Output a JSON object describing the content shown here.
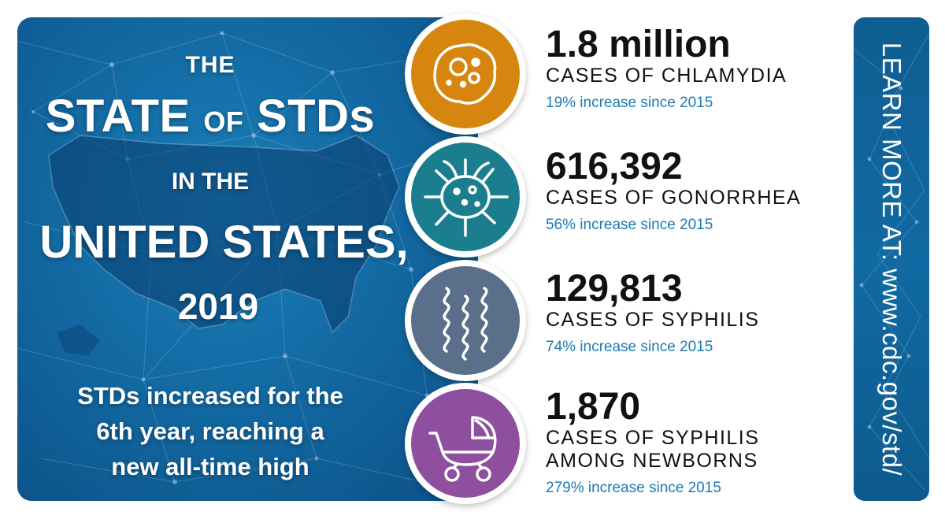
{
  "title": {
    "line1": "THE",
    "line2_a": "STATE",
    "line2_of": "OF",
    "line2_b": "STDs",
    "line3": "IN THE",
    "line4": "UNITED STATES,",
    "line5": "2019"
  },
  "subtitle": {
    "line1": "STDs increased for the",
    "line2": "6th year, reaching a",
    "line3": "new all-time high"
  },
  "stats": [
    {
      "number": "1.8 million",
      "label1": "CASES OF CHLAMYDIA",
      "label2": "",
      "increase": "19% increase since 2015",
      "icon": "bacteria-cell-icon",
      "color": "#d6860f"
    },
    {
      "number": "616,392",
      "label1": "CASES OF GONORRHEA",
      "label2": "",
      "increase": "56% increase since 2015",
      "icon": "microbe-icon",
      "color": "#1a7e8f"
    },
    {
      "number": "129,813",
      "label1": "CASES OF SYPHILIS",
      "label2": "",
      "increase": "74% increase since 2015",
      "icon": "spirochete-icon",
      "color": "#5a6f89"
    },
    {
      "number": "1,870",
      "label1": "CASES OF SYPHILIS",
      "label2": "AMONG NEWBORNS",
      "increase": "279% increase since 2015",
      "icon": "baby-carriage-icon",
      "color": "#8f4f9f"
    }
  ],
  "learn_more": "LEARN MORE AT:  www.cdc.gov/std/",
  "colors": {
    "panel_blue": "#136aa3",
    "accent_blue": "#1c7ab5"
  }
}
